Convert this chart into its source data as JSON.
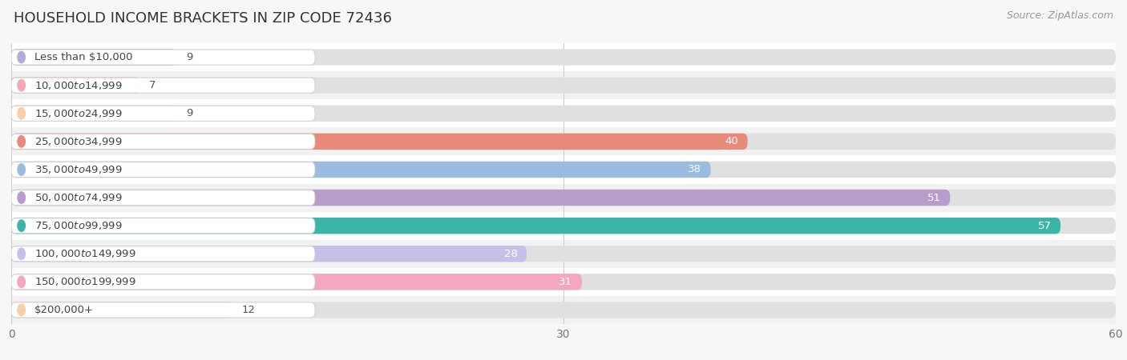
{
  "title": "HOUSEHOLD INCOME BRACKETS IN ZIP CODE 72436",
  "source": "Source: ZipAtlas.com",
  "categories": [
    "Less than $10,000",
    "$10,000 to $14,999",
    "$15,000 to $24,999",
    "$25,000 to $34,999",
    "$35,000 to $49,999",
    "$50,000 to $74,999",
    "$75,000 to $99,999",
    "$100,000 to $149,999",
    "$150,000 to $199,999",
    "$200,000+"
  ],
  "values": [
    9,
    7,
    9,
    40,
    38,
    51,
    57,
    28,
    31,
    12
  ],
  "bar_colors": [
    "#b0aed8",
    "#f4a7b9",
    "#f9cfaa",
    "#e8897a",
    "#9bbcde",
    "#b89ccc",
    "#3ab5a8",
    "#c5c0e8",
    "#f4a7c0",
    "#f9cfaa"
  ],
  "label_colors": [
    "#555555",
    "#555555",
    "#555555",
    "#ffffff",
    "#ffffff",
    "#ffffff",
    "#ffffff",
    "#555555",
    "#555555",
    "#555555"
  ],
  "xlim": [
    0,
    60
  ],
  "xticks": [
    0,
    30,
    60
  ],
  "background_color": "#f7f7f7",
  "row_colors": [
    "#ffffff",
    "#f2f2f2"
  ],
  "bar_bg_color": "#e0e0e0",
  "title_fontsize": 13,
  "source_fontsize": 9,
  "value_fontsize": 9.5,
  "category_fontsize": 9.5,
  "bar_height": 0.58
}
